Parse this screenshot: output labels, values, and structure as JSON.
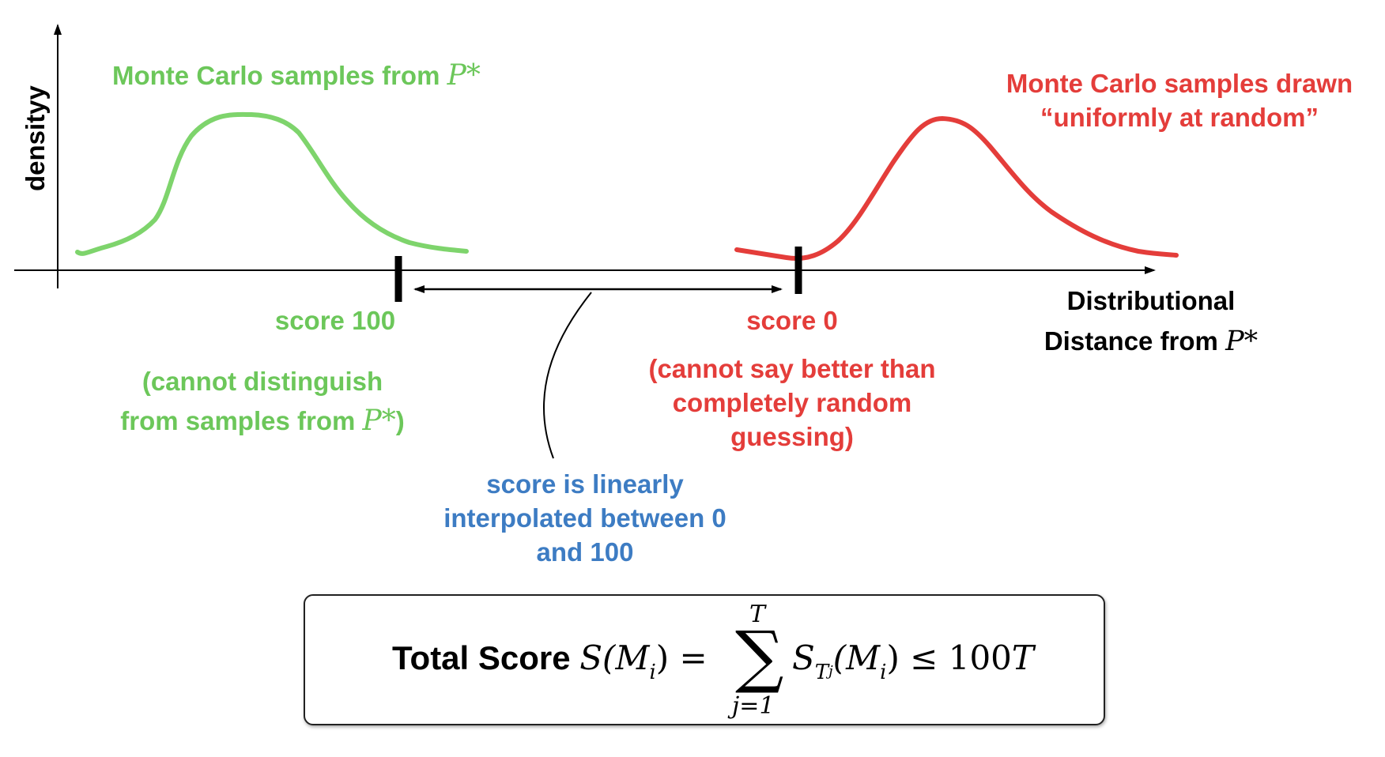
{
  "axes": {
    "y_label": "densityy",
    "x_label_line1": "Distributional",
    "x_label_line2_prefix": "Distance from ",
    "x_label_line2_math": "P*"
  },
  "green": {
    "title_prefix": "Monte Carlo samples from ",
    "title_math": "P*",
    "score": "score 100",
    "note_line1": "(cannot distinguish",
    "note_line2_prefix": "from samples from ",
    "note_line2_math": "P*",
    "note_line2_suffix": ")",
    "color": "#6cc75a"
  },
  "red": {
    "title_line1": "Monte Carlo samples drawn",
    "title_line2": "“uniformly at random”",
    "score": "score 0",
    "note_line1": "(cannot say better than",
    "note_line2": "completely random",
    "note_line3": "guessing)",
    "color": "#e43d3a"
  },
  "interp": {
    "line1": "score is linearly",
    "line2": "interpolated between 0",
    "line3": "and 100",
    "color": "#3d7cc3"
  },
  "formula": {
    "label": "Total Score ",
    "lhs": "S(M",
    "lhs_sub": "i",
    "lhs_close": ") =",
    "sum_symbol": "∑",
    "sum_upper": "T",
    "sum_lower": "j=1",
    "rhs_s": "S",
    "rhs_T": "T",
    "rhs_T_sub": "j",
    "rhs_arg": "(M",
    "rhs_arg_sub": "i",
    "rhs_close": ")",
    "rhs_leq": " ≤ ",
    "rhs_bound_num": "100",
    "rhs_bound_var": "T"
  }
}
